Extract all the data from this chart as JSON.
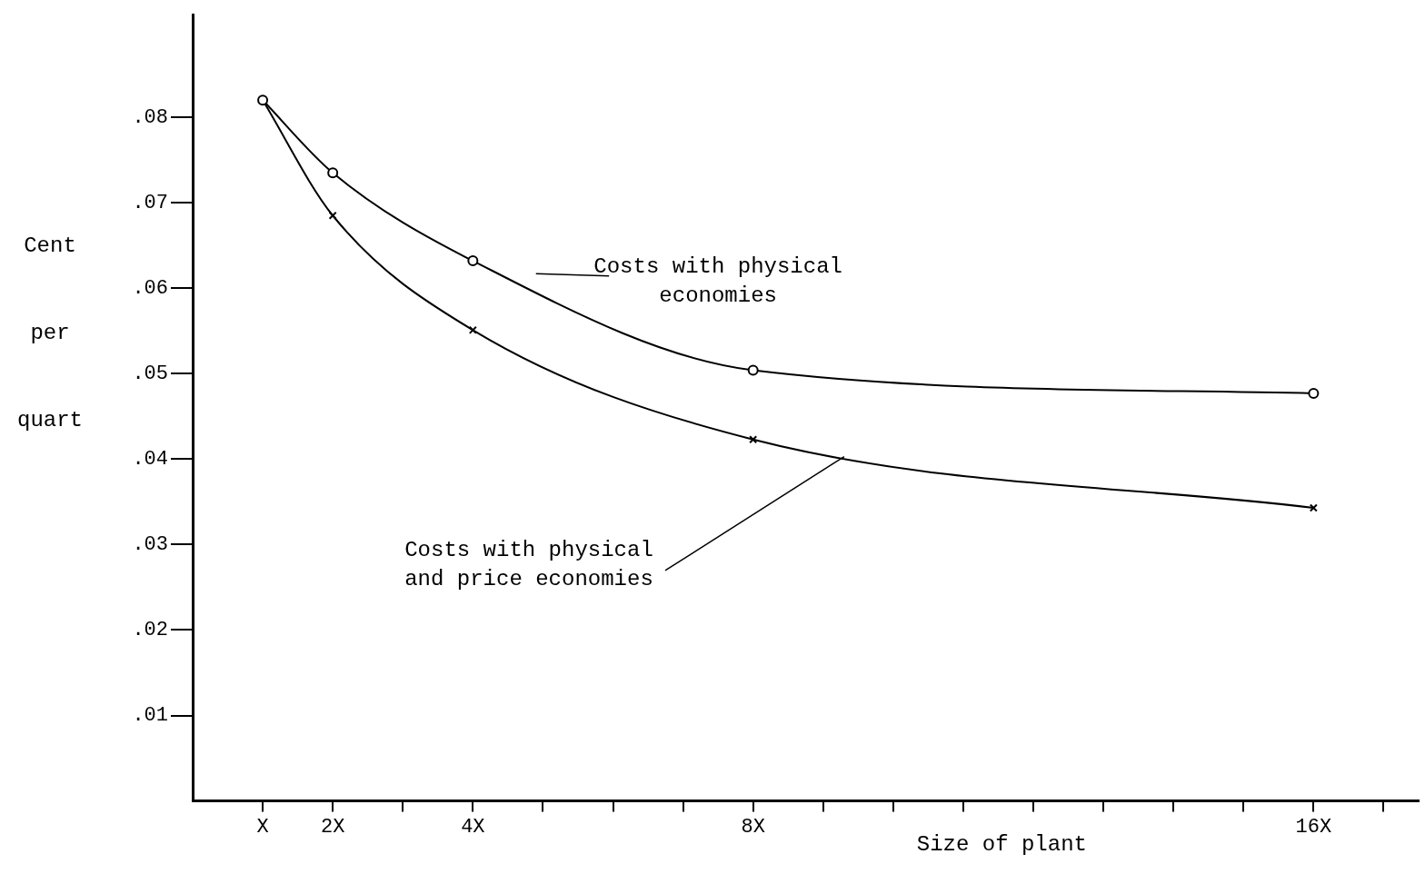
{
  "chart_data": {
    "type": "line",
    "xlabel": "Size of plant",
    "ylabel": "Cent per quart",
    "x": [
      1,
      2,
      4,
      8,
      16
    ],
    "series": [
      {
        "name": "Costs with physical economies",
        "color": "#000000",
        "marker": "circle",
        "values": [
          0.082,
          0.0735,
          0.0632,
          0.0504,
          0.0477
        ]
      },
      {
        "name": "Costs with physical and price economies",
        "color": "#000000",
        "marker": "cross",
        "values": [
          0.082,
          0.0685,
          0.0551,
          0.0423,
          0.0343
        ]
      }
    ],
    "xlim": [
      0,
      17.5
    ],
    "xticks": [
      {
        "value": 1,
        "label": "X"
      },
      {
        "value": 2,
        "label": "2X"
      },
      {
        "value": 3,
        "label": null
      },
      {
        "value": 4,
        "label": "4X"
      },
      {
        "value": 5,
        "label": null
      },
      {
        "value": 6,
        "label": null
      },
      {
        "value": 7,
        "label": null
      },
      {
        "value": 8,
        "label": "8X"
      },
      {
        "value": 9,
        "label": null
      },
      {
        "value": 10,
        "label": null
      },
      {
        "value": 11,
        "label": null
      },
      {
        "value": 12,
        "label": null
      },
      {
        "value": 13,
        "label": null
      },
      {
        "value": 14,
        "label": null
      },
      {
        "value": 15,
        "label": null
      },
      {
        "value": 16,
        "label": "16X"
      },
      {
        "value": 17,
        "label": null
      }
    ],
    "ylim": [
      0,
      0.092
    ],
    "yticks": [
      {
        "value": 0.01,
        "label": ".01"
      },
      {
        "value": 0.02,
        "label": ".02"
      },
      {
        "value": 0.03,
        "label": ".03"
      },
      {
        "value": 0.04,
        "label": ".04"
      },
      {
        "value": 0.05,
        "label": ".05"
      },
      {
        "value": 0.06,
        "label": ".06"
      },
      {
        "value": 0.07,
        "label": ".07"
      },
      {
        "value": 0.08,
        "label": ".08"
      }
    ],
    "grid": false,
    "legend": false,
    "line_style": "solid"
  }
}
